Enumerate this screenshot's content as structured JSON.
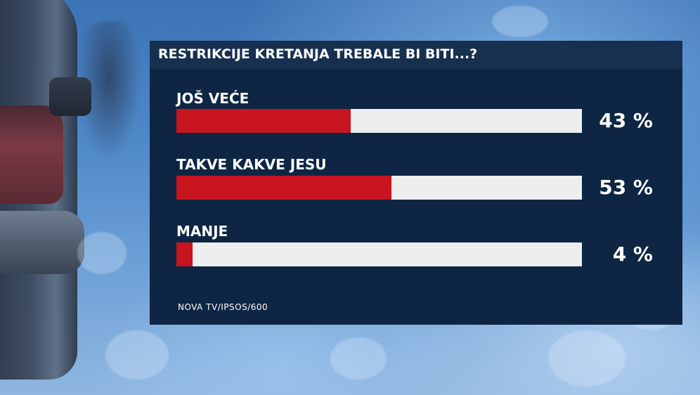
{
  "chart_data": {
    "type": "bar",
    "orientation": "horizontal",
    "title": "RESTRIKCIJE KRETANJA TREBALE BI BITI...?",
    "categories": [
      "JOŠ VEĆE",
      "TAKVE KAKVE JESU",
      "MANJE"
    ],
    "values": [
      43,
      53,
      4
    ],
    "value_labels": [
      "43 %",
      "53 %",
      "4 %"
    ],
    "xlim": [
      0,
      100
    ],
    "xlabel": "",
    "ylabel": "",
    "grid": false,
    "legend": "none",
    "bar_color": "#c8141f",
    "track_color": "#eeeeee"
  },
  "source": "NOVA TV/IPSOS/600",
  "colors": {
    "panel": "#0e2644",
    "header": "#17304f",
    "text": "#ffffff"
  }
}
